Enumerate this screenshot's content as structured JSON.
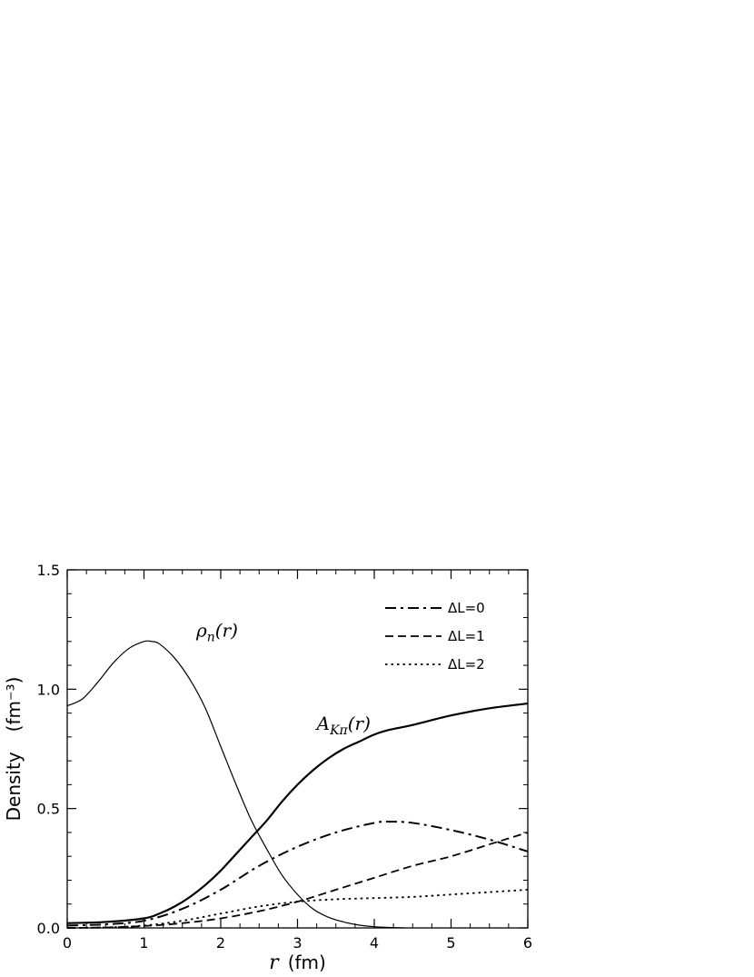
{
  "chart_data": {
    "type": "line",
    "title": "",
    "xlabel": "r  (fm)",
    "xlabel_var": "r",
    "xlabel_unit": "(fm)",
    "ylabel": "Density   (fm⁻³)",
    "ylabel_word": "Density",
    "ylabel_unit": "(fm⁻³)",
    "xlim": [
      0,
      6
    ],
    "ylim": [
      0,
      1.5
    ],
    "x_ticks": [
      0,
      1,
      2,
      3,
      4,
      5,
      6
    ],
    "x_tick_labels": [
      "0",
      "1",
      "2",
      "3",
      "4",
      "5",
      "6"
    ],
    "y_ticks": [
      0,
      0.5,
      1.0,
      1.5
    ],
    "y_tick_labels": [
      "0.0",
      "0.5",
      "1.0",
      "1.5"
    ],
    "grid": false,
    "legend_position": "top-right",
    "annotations": [
      {
        "text": "ρn(r)",
        "base": "ρ",
        "sub": "n",
        "arg": "(r)",
        "x": 1.68,
        "y": 1.22
      },
      {
        "text": "AKπ(r)",
        "base": "A",
        "sub": "Kπ",
        "arg": "(r)",
        "x": 3.25,
        "y": 0.83
      }
    ],
    "series": [
      {
        "label_text": "ρn(r)",
        "style": "solid-thin",
        "color": "#000000",
        "x": [
          0,
          0.2,
          0.4,
          0.6,
          0.8,
          1.0,
          1.1,
          1.2,
          1.4,
          1.6,
          1.8,
          2.0,
          2.2,
          2.4,
          2.6,
          2.8,
          3.0,
          3.2,
          3.4,
          3.6,
          3.8,
          4.0,
          4.2,
          4.4
        ],
        "y": [
          0.93,
          0.96,
          1.03,
          1.11,
          1.17,
          1.2,
          1.2,
          1.19,
          1.13,
          1.04,
          0.92,
          0.76,
          0.6,
          0.45,
          0.33,
          0.22,
          0.14,
          0.08,
          0.045,
          0.025,
          0.012,
          0.005,
          0.002,
          0.0
        ]
      },
      {
        "label_text": "AKπ(r)",
        "style": "solid-thick",
        "color": "#000000",
        "x": [
          0,
          0.5,
          1.0,
          1.2,
          1.4,
          1.6,
          1.8,
          2.0,
          2.2,
          2.4,
          2.6,
          2.8,
          3.0,
          3.2,
          3.4,
          3.6,
          3.8,
          4.0,
          4.2,
          4.5,
          5.0,
          5.5,
          6.0
        ],
        "y": [
          0.02,
          0.025,
          0.04,
          0.06,
          0.09,
          0.13,
          0.18,
          0.24,
          0.31,
          0.38,
          0.45,
          0.53,
          0.6,
          0.66,
          0.71,
          0.75,
          0.78,
          0.81,
          0.83,
          0.85,
          0.89,
          0.92,
          0.94
        ]
      },
      {
        "name": "ΔL=0",
        "legend_label": "ΔL=0",
        "style": "dash-dot",
        "color": "#000000",
        "x": [
          0,
          0.5,
          1.0,
          1.5,
          2.0,
          2.5,
          3.0,
          3.5,
          4.0,
          4.2,
          4.5,
          5.0,
          5.5,
          6.0
        ],
        "y": [
          0.01,
          0.015,
          0.03,
          0.08,
          0.16,
          0.26,
          0.34,
          0.4,
          0.44,
          0.445,
          0.44,
          0.41,
          0.37,
          0.32
        ]
      },
      {
        "name": "ΔL=1",
        "legend_label": "ΔL=1",
        "style": "dashed",
        "color": "#000000",
        "x": [
          0,
          0.5,
          1.0,
          1.5,
          2.0,
          2.5,
          3.0,
          3.5,
          4.0,
          4.5,
          5.0,
          5.5,
          6.0
        ],
        "y": [
          0.0,
          0.002,
          0.008,
          0.02,
          0.04,
          0.07,
          0.11,
          0.16,
          0.21,
          0.26,
          0.3,
          0.35,
          0.4
        ]
      },
      {
        "name": "ΔL=2",
        "legend_label": "ΔL=2",
        "style": "dotted",
        "color": "#000000",
        "x": [
          0,
          0.5,
          1.0,
          1.5,
          2.0,
          2.5,
          3.0,
          3.5,
          4.0,
          4.5,
          5.0,
          5.5,
          6.0
        ],
        "y": [
          0.0,
          0.002,
          0.01,
          0.03,
          0.06,
          0.09,
          0.11,
          0.12,
          0.125,
          0.13,
          0.14,
          0.15,
          0.16
        ]
      }
    ]
  }
}
